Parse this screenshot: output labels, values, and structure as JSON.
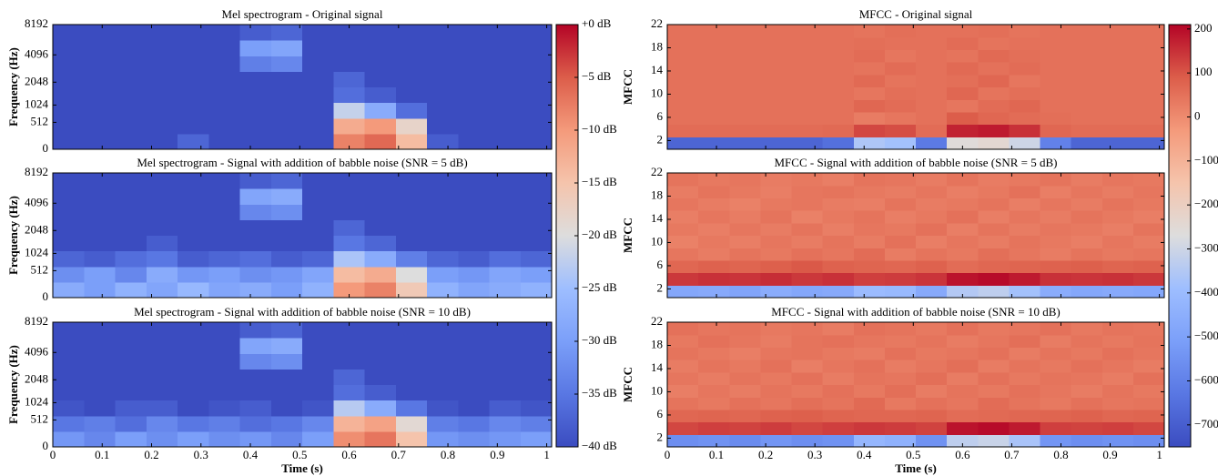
{
  "chart_data": [
    {
      "type": "heatmap",
      "title": "Mel spectrogram - Original signal",
      "ylabel": "Frequency (Hz)",
      "yscale": "mel",
      "colormap": "coolwarm",
      "xlim": [
        0,
        1.01
      ],
      "xticks": [
        0,
        0.1,
        0.2,
        0.3,
        0.4,
        0.5,
        0.6,
        0.7,
        0.8,
        0.9,
        1
      ],
      "ylim": [
        0,
        8192
      ],
      "yticks": [
        0,
        512,
        1024,
        2048,
        4096,
        8192
      ],
      "zlim": [
        -40,
        0
      ],
      "colorbar_ticks": [
        {
          "value": 0,
          "label": "+0 dB"
        },
        {
          "value": -5,
          "label": "−5 dB"
        },
        {
          "value": -10,
          "label": "−10 dB"
        },
        {
          "value": -15,
          "label": "−15 dB"
        },
        {
          "value": -20,
          "label": "−20 dB"
        },
        {
          "value": -25,
          "label": "−25 dB"
        },
        {
          "value": -30,
          "label": "−30 dB"
        },
        {
          "value": -35,
          "label": "−35 dB"
        },
        {
          "value": -40,
          "label": "−40 dB"
        }
      ],
      "z": [
        [
          -40,
          -40,
          -40,
          -40,
          -37,
          -40,
          -40,
          -40,
          -40,
          -8,
          -6,
          -14,
          -38,
          -40,
          -40,
          -40
        ],
        [
          -40,
          -40,
          -40,
          -40,
          -40,
          -40,
          -40,
          -40,
          -40,
          -12,
          -10,
          -18,
          -40,
          -40,
          -40,
          -40
        ],
        [
          -40,
          -40,
          -40,
          -40,
          -40,
          -40,
          -40,
          -40,
          -40,
          -22,
          -28,
          -36,
          -40,
          -40,
          -40,
          -40
        ],
        [
          -40,
          -40,
          -40,
          -40,
          -40,
          -40,
          -40,
          -40,
          -40,
          -36,
          -38,
          -40,
          -40,
          -40,
          -40,
          -40
        ],
        [
          -40,
          -40,
          -40,
          -40,
          -40,
          -40,
          -40,
          -40,
          -40,
          -37,
          -40,
          -40,
          -40,
          -40,
          -40,
          -40
        ],
        [
          -40,
          -40,
          -40,
          -40,
          -40,
          -40,
          -34,
          -33,
          -40,
          -40,
          -40,
          -40,
          -40,
          -40,
          -40,
          -40
        ],
        [
          -40,
          -40,
          -40,
          -40,
          -40,
          -40,
          -30,
          -29,
          -40,
          -40,
          -40,
          -40,
          -40,
          -40,
          -40,
          -40
        ],
        [
          -40,
          -40,
          -40,
          -40,
          -40,
          -40,
          -38,
          -37,
          -40,
          -40,
          -40,
          -40,
          -40,
          -40,
          -40,
          -40
        ]
      ]
    },
    {
      "type": "heatmap",
      "title": "Mel spectrogram - Signal with addition of babble noise (SNR = 5 dB)",
      "ylabel": "Frequency (Hz)",
      "yscale": "mel",
      "colormap": "coolwarm",
      "xlim": [
        0,
        1.01
      ],
      "xticks": [
        0,
        0.1,
        0.2,
        0.3,
        0.4,
        0.5,
        0.6,
        0.7,
        0.8,
        0.9,
        1
      ],
      "ylim": [
        0,
        8192
      ],
      "yticks": [
        0,
        512,
        1024,
        2048,
        4096,
        8192
      ],
      "zlim": [
        -40,
        0
      ],
      "z": [
        [
          -28,
          -30,
          -27,
          -29,
          -26,
          -29,
          -28,
          -30,
          -27,
          -10,
          -8,
          -16,
          -27,
          -29,
          -28,
          -27
        ],
        [
          -32,
          -30,
          -33,
          -28,
          -31,
          -30,
          -32,
          -31,
          -29,
          -14,
          -12,
          -20,
          -30,
          -31,
          -29,
          -30
        ],
        [
          -37,
          -38,
          -36,
          -35,
          -38,
          -37,
          -36,
          -38,
          -37,
          -24,
          -28,
          -34,
          -37,
          -38,
          -36,
          -37
        ],
        [
          -40,
          -40,
          -40,
          -38,
          -40,
          -40,
          -40,
          -40,
          -40,
          -35,
          -37,
          -40,
          -40,
          -40,
          -40,
          -40
        ],
        [
          -40,
          -40,
          -40,
          -40,
          -40,
          -40,
          -40,
          -40,
          -40,
          -37,
          -40,
          -40,
          -40,
          -40,
          -40,
          -40
        ],
        [
          -40,
          -40,
          -40,
          -40,
          -40,
          -40,
          -33,
          -32,
          -40,
          -40,
          -40,
          -40,
          -40,
          -40,
          -40,
          -40
        ],
        [
          -40,
          -40,
          -40,
          -40,
          -40,
          -40,
          -29,
          -28,
          -40,
          -40,
          -40,
          -40,
          -40,
          -40,
          -40,
          -40
        ],
        [
          -40,
          -40,
          -40,
          -40,
          -40,
          -40,
          -38,
          -37,
          -40,
          -40,
          -40,
          -40,
          -40,
          -40,
          -40,
          -40
        ]
      ]
    },
    {
      "type": "heatmap",
      "title": "Mel spectrogram - Signal with addition of babble noise (SNR = 10 dB)",
      "ylabel": "Frequency (Hz)",
      "xlabel": "Time (s)",
      "yscale": "mel",
      "colormap": "coolwarm",
      "xlim": [
        0,
        1.01
      ],
      "xticks": [
        0,
        0.1,
        0.2,
        0.3,
        0.4,
        0.5,
        0.6,
        0.7,
        0.8,
        0.9,
        1
      ],
      "ylim": [
        0,
        8192
      ],
      "yticks": [
        0,
        512,
        1024,
        2048,
        4096,
        8192
      ],
      "zlim": [
        -40,
        0
      ],
      "z": [
        [
          -31,
          -33,
          -30,
          -32,
          -30,
          -32,
          -31,
          -33,
          -30,
          -9,
          -7,
          -15,
          -31,
          -32,
          -31,
          -30
        ],
        [
          -35,
          -34,
          -36,
          -33,
          -35,
          -34,
          -36,
          -35,
          -33,
          -13,
          -11,
          -19,
          -34,
          -35,
          -33,
          -34
        ],
        [
          -39,
          -40,
          -38,
          -38,
          -40,
          -39,
          -38,
          -40,
          -39,
          -23,
          -28,
          -35,
          -39,
          -40,
          -38,
          -39
        ],
        [
          -40,
          -40,
          -40,
          -40,
          -40,
          -40,
          -40,
          -40,
          -40,
          -36,
          -38,
          -40,
          -40,
          -40,
          -40,
          -40
        ],
        [
          -40,
          -40,
          -40,
          -40,
          -40,
          -40,
          -40,
          -40,
          -40,
          -37,
          -40,
          -40,
          -40,
          -40,
          -40,
          -40
        ],
        [
          -40,
          -40,
          -40,
          -40,
          -40,
          -40,
          -33,
          -32,
          -40,
          -40,
          -40,
          -40,
          -40,
          -40,
          -40,
          -40
        ],
        [
          -40,
          -40,
          -40,
          -40,
          -40,
          -40,
          -29,
          -28,
          -40,
          -40,
          -40,
          -40,
          -40,
          -40,
          -40,
          -40
        ],
        [
          -40,
          -40,
          -40,
          -40,
          -40,
          -40,
          -38,
          -37,
          -40,
          -40,
          -40,
          -40,
          -40,
          -40,
          -40,
          -40
        ]
      ]
    },
    {
      "type": "heatmap",
      "title": "MFCC - Original signal",
      "ylabel": "MFCC",
      "yscale": "linear",
      "colormap": "coolwarm",
      "xlim": [
        0,
        1.01
      ],
      "xticks": [
        0,
        0.1,
        0.2,
        0.3,
        0.4,
        0.5,
        0.6,
        0.7,
        0.8,
        0.9,
        1
      ],
      "ylim": [
        0.5,
        22
      ],
      "yticks": [
        2,
        6,
        10,
        14,
        18,
        22
      ],
      "zlim": [
        -750,
        210
      ],
      "colorbar_ticks": [
        200,
        100,
        0,
        {
          "value": -100,
          "label": "−100"
        },
        {
          "value": -200,
          "label": "−200"
        },
        {
          "value": -300,
          "label": "−300"
        },
        {
          "value": -400,
          "label": "−400"
        },
        {
          "value": -500,
          "label": "−500"
        },
        {
          "value": -600,
          "label": "−600"
        },
        {
          "value": -700,
          "label": "−700"
        }
      ],
      "z": [
        [
          -680,
          -680,
          -680,
          -680,
          -680,
          -650,
          -360,
          -380,
          -620,
          -260,
          -240,
          -300,
          -600,
          -680,
          -680,
          -680
        ],
        [
          60,
          60,
          60,
          60,
          60,
          65,
          120,
          110,
          60,
          170,
          180,
          150,
          70,
          60,
          60,
          60
        ],
        [
          50,
          50,
          50,
          50,
          50,
          50,
          30,
          40,
          50,
          90,
          70,
          60,
          55,
          50,
          50,
          50
        ],
        [
          50,
          50,
          50,
          50,
          50,
          50,
          70,
          60,
          50,
          40,
          60,
          70,
          50,
          50,
          50,
          50
        ],
        [
          50,
          50,
          50,
          50,
          50,
          50,
          40,
          55,
          50,
          70,
          45,
          55,
          50,
          50,
          50,
          50
        ],
        [
          50,
          50,
          50,
          50,
          50,
          50,
          65,
          45,
          50,
          55,
          70,
          40,
          50,
          50,
          50,
          50
        ],
        [
          50,
          50,
          50,
          50,
          50,
          50,
          45,
          60,
          50,
          65,
          50,
          60,
          50,
          50,
          50,
          50
        ],
        [
          50,
          50,
          50,
          50,
          50,
          50,
          60,
          40,
          50,
          45,
          65,
          55,
          50,
          50,
          50,
          50
        ],
        [
          50,
          50,
          50,
          50,
          50,
          50,
          55,
          50,
          50,
          60,
          45,
          50,
          50,
          50,
          50,
          50
        ],
        [
          50,
          50,
          50,
          50,
          50,
          50,
          45,
          55,
          50,
          50,
          55,
          45,
          50,
          50,
          50,
          50
        ]
      ]
    },
    {
      "type": "heatmap",
      "title": "MFCC - Signal with addition of babble noise (SNR = 5 dB)",
      "ylabel": "MFCC",
      "yscale": "linear",
      "colormap": "coolwarm",
      "xlim": [
        0,
        1.01
      ],
      "xticks": [
        0,
        0.1,
        0.2,
        0.3,
        0.4,
        0.5,
        0.6,
        0.7,
        0.8,
        0.9,
        1
      ],
      "ylim": [
        0.5,
        22
      ],
      "yticks": [
        2,
        6,
        10,
        14,
        18,
        22
      ],
      "zlim": [
        -750,
        210
      ],
      "z": [
        [
          -480,
          -470,
          -490,
          -460,
          -480,
          -470,
          -400,
          -410,
          -470,
          -350,
          -330,
          -380,
          -460,
          -480,
          -470,
          -480
        ],
        [
          140,
          150,
          145,
          155,
          140,
          150,
          130,
          135,
          145,
          190,
          200,
          180,
          150,
          145,
          150,
          140
        ],
        [
          70,
          80,
          75,
          85,
          95,
          80,
          75,
          70,
          80,
          60,
          70,
          75,
          80,
          85,
          75,
          80
        ],
        [
          40,
          30,
          45,
          35,
          50,
          40,
          60,
          30,
          45,
          35,
          55,
          40,
          30,
          45,
          35,
          40
        ],
        [
          20,
          35,
          25,
          40,
          30,
          45,
          30,
          50,
          25,
          40,
          30,
          45,
          35,
          25,
          40,
          30
        ],
        [
          35,
          25,
          40,
          30,
          45,
          25,
          40,
          35,
          50,
          25,
          45,
          30,
          40,
          35,
          25,
          45
        ],
        [
          25,
          40,
          30,
          45,
          20,
          35,
          45,
          25,
          35,
          50,
          25,
          40,
          30,
          45,
          35,
          25
        ],
        [
          40,
          30,
          20,
          35,
          40,
          30,
          25,
          45,
          30,
          35,
          45,
          25,
          40,
          30,
          45,
          35
        ],
        [
          30,
          45,
          35,
          25,
          40,
          45,
          35,
          30,
          40,
          25,
          35,
          50,
          25,
          40,
          30,
          40
        ],
        [
          45,
          35,
          40,
          30,
          35,
          25,
          45,
          40,
          30,
          45,
          30,
          35,
          45,
          30,
          40,
          35
        ]
      ]
    },
    {
      "type": "heatmap",
      "title": "MFCC - Signal with addition of babble noise (SNR = 10 dB)",
      "ylabel": "MFCC",
      "xlabel": "Time (s)",
      "yscale": "linear",
      "colormap": "coolwarm",
      "xlim": [
        0,
        1.01
      ],
      "xticks": [
        0,
        0.1,
        0.2,
        0.3,
        0.4,
        0.5,
        0.6,
        0.7,
        0.8,
        0.9,
        1
      ],
      "ylim": [
        0.5,
        22
      ],
      "yticks": [
        2,
        6,
        10,
        14,
        18,
        22
      ],
      "zlim": [
        -750,
        210
      ],
      "z": [
        [
          -560,
          -550,
          -570,
          -540,
          -560,
          -550,
          -420,
          -440,
          -550,
          -330,
          -310,
          -370,
          -540,
          -560,
          -550,
          -560
        ],
        [
          120,
          130,
          125,
          135,
          120,
          130,
          140,
          135,
          125,
          190,
          200,
          180,
          130,
          125,
          130,
          120
        ],
        [
          70,
          75,
          70,
          80,
          85,
          75,
          70,
          70,
          75,
          60,
          65,
          70,
          75,
          80,
          70,
          75
        ],
        [
          45,
          35,
          50,
          40,
          55,
          45,
          65,
          35,
          50,
          40,
          60,
          45,
          35,
          50,
          40,
          45
        ],
        [
          25,
          40,
          30,
          45,
          35,
          50,
          35,
          55,
          30,
          45,
          35,
          50,
          40,
          30,
          45,
          35
        ],
        [
          40,
          30,
          45,
          35,
          50,
          30,
          45,
          40,
          55,
          30,
          50,
          35,
          45,
          40,
          30,
          50
        ],
        [
          30,
          45,
          35,
          50,
          25,
          40,
          50,
          30,
          40,
          55,
          30,
          45,
          35,
          50,
          40,
          30
        ],
        [
          45,
          35,
          25,
          40,
          45,
          35,
          30,
          50,
          35,
          40,
          50,
          30,
          45,
          35,
          50,
          40
        ],
        [
          35,
          50,
          40,
          30,
          45,
          50,
          40,
          35,
          45,
          30,
          40,
          55,
          30,
          45,
          35,
          45
        ],
        [
          50,
          40,
          45,
          35,
          40,
          30,
          50,
          45,
          35,
          50,
          35,
          40,
          50,
          35,
          45,
          40
        ]
      ]
    }
  ]
}
